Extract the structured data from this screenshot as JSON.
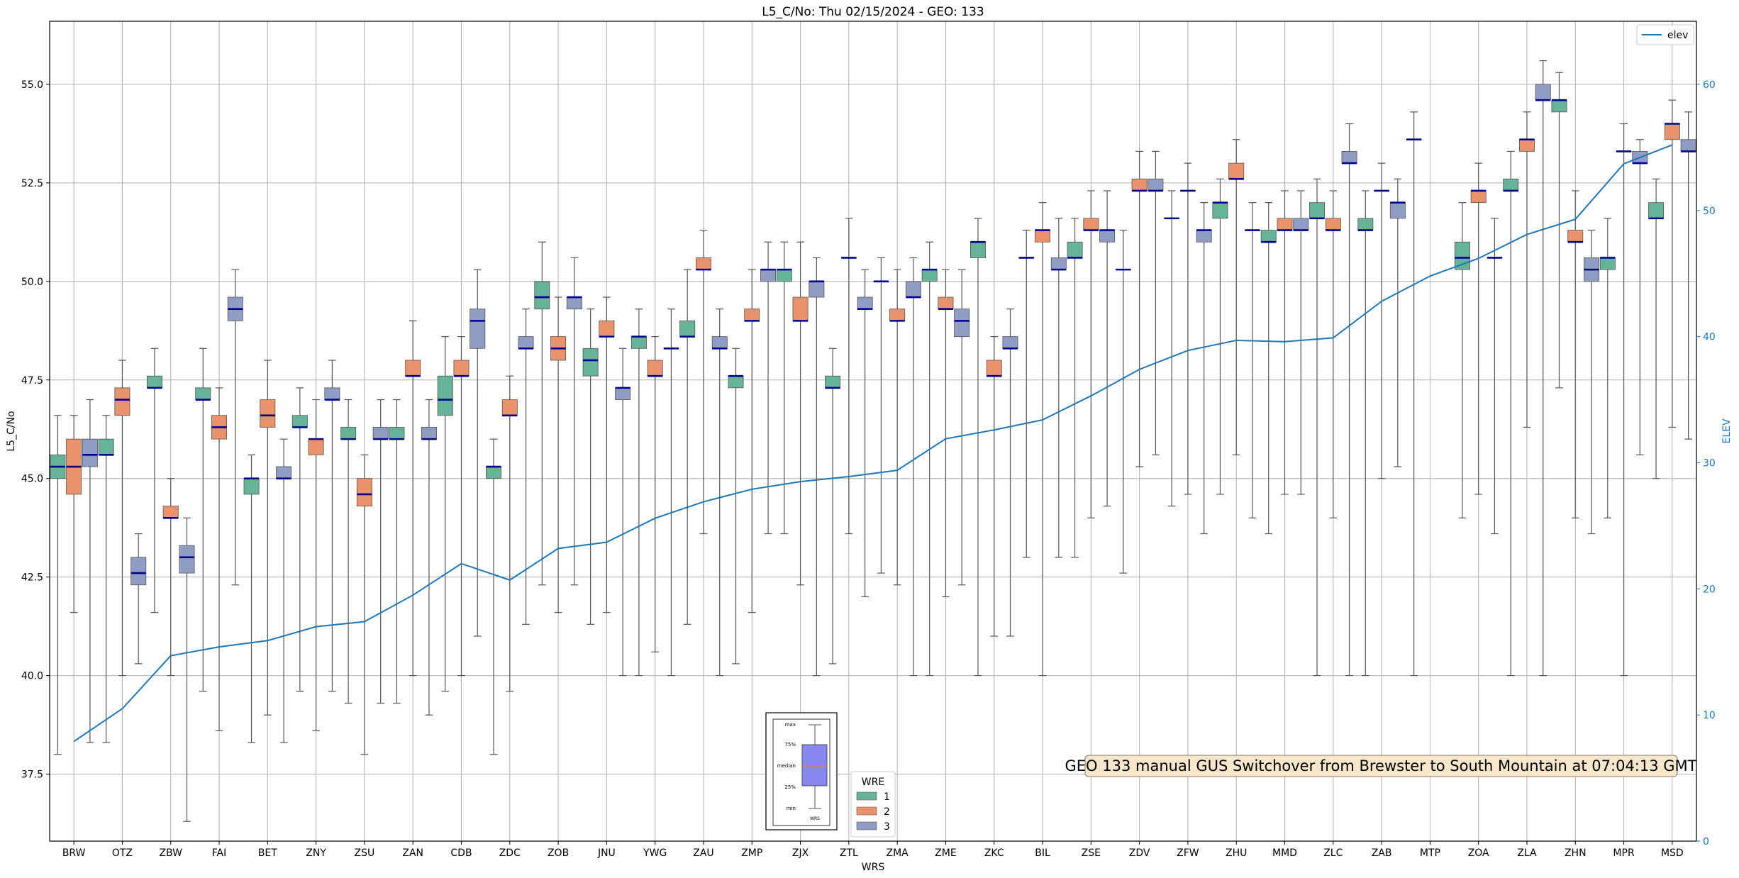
{
  "chart_data": {
    "type": "box",
    "title": "L5_C/No: Thu 02/15/2024 - GEO: 133",
    "xlabel": "WRS",
    "ylabel": "L5_C/No",
    "y2label": "ELEV",
    "ylim": [
      35.8,
      56.6
    ],
    "y2lim": [
      0,
      65
    ],
    "yticks": [
      "37.5",
      "40.0",
      "42.5",
      "45.0",
      "47.5",
      "50.0",
      "52.5",
      "55.0"
    ],
    "y2ticks": [
      "0",
      "10",
      "20",
      "30",
      "40",
      "50",
      "60"
    ],
    "grid": true,
    "categories": [
      "BRW",
      "OTZ",
      "ZBW",
      "FAI",
      "BET",
      "ZNY",
      "ZSU",
      "ZAN",
      "CDB",
      "ZDC",
      "ZOB",
      "JNU",
      "YWG",
      "ZAU",
      "ZMP",
      "ZJX",
      "ZTL",
      "ZMA",
      "ZME",
      "ZKC",
      "BIL",
      "ZSE",
      "ZDV",
      "ZFW",
      "ZHU",
      "MMD",
      "ZLC",
      "ZAB",
      "MTP",
      "ZOA",
      "ZLA",
      "ZHN",
      "MPR",
      "MSD"
    ],
    "wre_colors": {
      "1": "#66b398",
      "2": "#e8936c",
      "3": "#8f9cc4"
    },
    "legend": {
      "title": "WRE",
      "entries": [
        "1",
        "2",
        "3"
      ],
      "position": "bottom-center"
    },
    "line_legend": {
      "label": "elev",
      "position": "top-right"
    },
    "elev_line_color": "#1f77b4",
    "boxes": [
      {
        "cat": "BRW",
        "wre": "1",
        "min": 38.0,
        "q1": 45.0,
        "med": 45.3,
        "q3": 45.6,
        "max": 46.6
      },
      {
        "cat": "BRW",
        "wre": "2",
        "min": 41.6,
        "q1": 44.6,
        "med": 45.3,
        "q3": 46.0,
        "max": 46.6
      },
      {
        "cat": "BRW",
        "wre": "3",
        "min": 38.3,
        "q1": 45.3,
        "med": 45.6,
        "q3": 46.0,
        "max": 47.0
      },
      {
        "cat": "OTZ",
        "wre": "1",
        "min": 38.3,
        "q1": 45.6,
        "med": 45.6,
        "q3": 46.0,
        "max": 46.6
      },
      {
        "cat": "OTZ",
        "wre": "2",
        "min": 40.0,
        "q1": 46.6,
        "med": 47.0,
        "q3": 47.3,
        "max": 48.0
      },
      {
        "cat": "OTZ",
        "wre": "3",
        "min": 40.3,
        "q1": 42.3,
        "med": 42.6,
        "q3": 43.0,
        "max": 43.6
      },
      {
        "cat": "ZBW",
        "wre": "1",
        "min": 41.6,
        "q1": 47.3,
        "med": 47.3,
        "q3": 47.6,
        "max": 48.3
      },
      {
        "cat": "ZBW",
        "wre": "2",
        "min": 40.0,
        "q1": 44.0,
        "med": 44.0,
        "q3": 44.3,
        "max": 45.0
      },
      {
        "cat": "ZBW",
        "wre": "3",
        "min": 36.3,
        "q1": 42.6,
        "med": 43.0,
        "q3": 43.3,
        "max": 44.0
      },
      {
        "cat": "FAI",
        "wre": "1",
        "min": 39.6,
        "q1": 47.0,
        "med": 47.0,
        "q3": 47.3,
        "max": 48.3
      },
      {
        "cat": "FAI",
        "wre": "2",
        "min": 38.6,
        "q1": 46.0,
        "med": 46.3,
        "q3": 46.6,
        "max": 47.3
      },
      {
        "cat": "FAI",
        "wre": "3",
        "min": 42.3,
        "q1": 49.0,
        "med": 49.3,
        "q3": 49.6,
        "max": 50.3
      },
      {
        "cat": "BET",
        "wre": "1",
        "min": 38.3,
        "q1": 44.6,
        "med": 45.0,
        "q3": 45.0,
        "max": 45.6
      },
      {
        "cat": "BET",
        "wre": "2",
        "min": 39.0,
        "q1": 46.3,
        "med": 46.6,
        "q3": 47.0,
        "max": 48.0
      },
      {
        "cat": "BET",
        "wre": "3",
        "min": 38.3,
        "q1": 45.0,
        "med": 45.0,
        "q3": 45.3,
        "max": 46.0
      },
      {
        "cat": "ZNY",
        "wre": "1",
        "min": 39.6,
        "q1": 46.3,
        "med": 46.3,
        "q3": 46.6,
        "max": 47.3
      },
      {
        "cat": "ZNY",
        "wre": "2",
        "min": 38.6,
        "q1": 45.6,
        "med": 46.0,
        "q3": 46.0,
        "max": 47.0
      },
      {
        "cat": "ZNY",
        "wre": "3",
        "min": 39.6,
        "q1": 47.0,
        "med": 47.0,
        "q3": 47.3,
        "max": 48.0
      },
      {
        "cat": "ZSU",
        "wre": "1",
        "min": 39.3,
        "q1": 46.0,
        "med": 46.0,
        "q3": 46.3,
        "max": 47.0
      },
      {
        "cat": "ZSU",
        "wre": "2",
        "min": 38.0,
        "q1": 44.3,
        "med": 44.6,
        "q3": 45.0,
        "max": 45.6
      },
      {
        "cat": "ZSU",
        "wre": "3",
        "min": 39.3,
        "q1": 46.0,
        "med": 46.0,
        "q3": 46.3,
        "max": 47.0
      },
      {
        "cat": "ZAN",
        "wre": "1",
        "min": 39.3,
        "q1": 46.0,
        "med": 46.0,
        "q3": 46.3,
        "max": 47.0
      },
      {
        "cat": "ZAN",
        "wre": "2",
        "min": 40.0,
        "q1": 47.6,
        "med": 47.6,
        "q3": 48.0,
        "max": 49.0
      },
      {
        "cat": "ZAN",
        "wre": "3",
        "min": 39.0,
        "q1": 46.0,
        "med": 46.0,
        "q3": 46.3,
        "max": 47.0
      },
      {
        "cat": "CDB",
        "wre": "1",
        "min": 39.6,
        "q1": 46.6,
        "med": 47.0,
        "q3": 47.6,
        "max": 48.6
      },
      {
        "cat": "CDB",
        "wre": "2",
        "min": 40.0,
        "q1": 47.6,
        "med": 47.6,
        "q3": 48.0,
        "max": 48.6
      },
      {
        "cat": "CDB",
        "wre": "3",
        "min": 41.0,
        "q1": 48.3,
        "med": 49.0,
        "q3": 49.3,
        "max": 50.3
      },
      {
        "cat": "ZDC",
        "wre": "1",
        "min": 38.0,
        "q1": 45.0,
        "med": 45.3,
        "q3": 45.3,
        "max": 46.0
      },
      {
        "cat": "ZDC",
        "wre": "2",
        "min": 39.6,
        "q1": 46.6,
        "med": 46.6,
        "q3": 47.0,
        "max": 47.6
      },
      {
        "cat": "ZDC",
        "wre": "3",
        "min": 41.3,
        "q1": 48.3,
        "med": 48.3,
        "q3": 48.6,
        "max": 49.3
      },
      {
        "cat": "ZOB",
        "wre": "1",
        "min": 42.3,
        "q1": 49.3,
        "med": 49.6,
        "q3": 50.0,
        "max": 51.0
      },
      {
        "cat": "ZOB",
        "wre": "2",
        "min": 41.6,
        "q1": 48.0,
        "med": 48.3,
        "q3": 48.6,
        "max": 49.6
      },
      {
        "cat": "ZOB",
        "wre": "3",
        "min": 42.3,
        "q1": 49.3,
        "med": 49.6,
        "q3": 49.6,
        "max": 50.6
      },
      {
        "cat": "JNU",
        "wre": "1",
        "min": 41.3,
        "q1": 47.6,
        "med": 48.0,
        "q3": 48.3,
        "max": 49.3
      },
      {
        "cat": "JNU",
        "wre": "2",
        "min": 41.6,
        "q1": 48.6,
        "med": 48.6,
        "q3": 49.0,
        "max": 49.6
      },
      {
        "cat": "JNU",
        "wre": "3",
        "min": 40.0,
        "q1": 47.0,
        "med": 47.3,
        "q3": 47.3,
        "max": 48.3
      },
      {
        "cat": "YWG",
        "wre": "1",
        "min": 40.0,
        "q1": 48.3,
        "med": 48.6,
        "q3": 48.6,
        "max": 49.3
      },
      {
        "cat": "YWG",
        "wre": "2",
        "min": 40.6,
        "q1": 47.6,
        "med": 47.6,
        "q3": 48.0,
        "max": 48.6
      },
      {
        "cat": "YWG",
        "wre": "3",
        "min": 40.0,
        "q1": 48.3,
        "med": 48.3,
        "q3": 48.3,
        "max": 49.3
      },
      {
        "cat": "ZAU",
        "wre": "1",
        "min": 41.3,
        "q1": 48.6,
        "med": 48.6,
        "q3": 49.0,
        "max": 50.3
      },
      {
        "cat": "ZAU",
        "wre": "2",
        "min": 43.6,
        "q1": 50.3,
        "med": 50.3,
        "q3": 50.6,
        "max": 51.3
      },
      {
        "cat": "ZAU",
        "wre": "3",
        "min": 40.0,
        "q1": 48.3,
        "med": 48.3,
        "q3": 48.6,
        "max": 49.3
      },
      {
        "cat": "ZMP",
        "wre": "1",
        "min": 40.3,
        "q1": 47.3,
        "med": 47.6,
        "q3": 47.6,
        "max": 48.3
      },
      {
        "cat": "ZMP",
        "wre": "2",
        "min": 41.6,
        "q1": 49.0,
        "med": 49.0,
        "q3": 49.3,
        "max": 50.3
      },
      {
        "cat": "ZMP",
        "wre": "3",
        "min": 43.6,
        "q1": 50.0,
        "med": 50.3,
        "q3": 50.3,
        "max": 51.0
      },
      {
        "cat": "ZJX",
        "wre": "1",
        "min": 43.6,
        "q1": 50.0,
        "med": 50.3,
        "q3": 50.3,
        "max": 51.0
      },
      {
        "cat": "ZJX",
        "wre": "2",
        "min": 42.3,
        "q1": 49.0,
        "med": 49.0,
        "q3": 49.6,
        "max": 51.0
      },
      {
        "cat": "ZJX",
        "wre": "3",
        "min": 40.0,
        "q1": 49.6,
        "med": 50.0,
        "q3": 50.0,
        "max": 50.6
      },
      {
        "cat": "ZTL",
        "wre": "1",
        "min": 40.3,
        "q1": 47.3,
        "med": 47.3,
        "q3": 47.6,
        "max": 48.3
      },
      {
        "cat": "ZTL",
        "wre": "2",
        "min": 43.6,
        "q1": 50.6,
        "med": 50.6,
        "q3": 50.6,
        "max": 51.6
      },
      {
        "cat": "ZTL",
        "wre": "3",
        "min": 42.0,
        "q1": 49.3,
        "med": 49.3,
        "q3": 49.6,
        "max": 50.3
      },
      {
        "cat": "ZMA",
        "wre": "1",
        "min": 42.6,
        "q1": 50.0,
        "med": 50.0,
        "q3": 50.0,
        "max": 50.6
      },
      {
        "cat": "ZMA",
        "wre": "2",
        "min": 42.3,
        "q1": 49.0,
        "med": 49.0,
        "q3": 49.3,
        "max": 50.3
      },
      {
        "cat": "ZMA",
        "wre": "3",
        "min": 40.0,
        "q1": 49.6,
        "med": 49.6,
        "q3": 50.0,
        "max": 50.6
      },
      {
        "cat": "ZME",
        "wre": "1",
        "min": 40.0,
        "q1": 50.0,
        "med": 50.3,
        "q3": 50.3,
        "max": 51.0
      },
      {
        "cat": "ZME",
        "wre": "2",
        "min": 42.0,
        "q1": 49.3,
        "med": 49.3,
        "q3": 49.6,
        "max": 50.3
      },
      {
        "cat": "ZME",
        "wre": "3",
        "min": 42.3,
        "q1": 48.6,
        "med": 49.0,
        "q3": 49.3,
        "max": 50.3
      },
      {
        "cat": "ZKC",
        "wre": "1",
        "min": 40.0,
        "q1": 50.6,
        "med": 51.0,
        "q3": 51.0,
        "max": 51.6
      },
      {
        "cat": "ZKC",
        "wre": "2",
        "min": 41.0,
        "q1": 47.6,
        "med": 47.6,
        "q3": 48.0,
        "max": 48.6
      },
      {
        "cat": "ZKC",
        "wre": "3",
        "min": 41.0,
        "q1": 48.3,
        "med": 48.3,
        "q3": 48.6,
        "max": 49.3
      },
      {
        "cat": "BIL",
        "wre": "1",
        "min": 43.0,
        "q1": 50.6,
        "med": 50.6,
        "q3": 50.6,
        "max": 51.3
      },
      {
        "cat": "BIL",
        "wre": "2",
        "min": 40.0,
        "q1": 51.0,
        "med": 51.3,
        "q3": 51.3,
        "max": 52.0
      },
      {
        "cat": "BIL",
        "wre": "3",
        "min": 43.0,
        "q1": 50.3,
        "med": 50.3,
        "q3": 50.6,
        "max": 51.6
      },
      {
        "cat": "ZSE",
        "wre": "1",
        "min": 43.0,
        "q1": 50.6,
        "med": 50.6,
        "q3": 51.0,
        "max": 51.6
      },
      {
        "cat": "ZSE",
        "wre": "2",
        "min": 44.0,
        "q1": 51.3,
        "med": 51.3,
        "q3": 51.6,
        "max": 52.3
      },
      {
        "cat": "ZSE",
        "wre": "3",
        "min": 44.3,
        "q1": 51.0,
        "med": 51.3,
        "q3": 51.3,
        "max": 52.3
      },
      {
        "cat": "ZDV",
        "wre": "1",
        "min": 42.6,
        "q1": 50.3,
        "med": 50.3,
        "q3": 50.3,
        "max": 51.3
      },
      {
        "cat": "ZDV",
        "wre": "2",
        "min": 45.3,
        "q1": 52.3,
        "med": 52.3,
        "q3": 52.6,
        "max": 53.3
      },
      {
        "cat": "ZDV",
        "wre": "3",
        "min": 45.6,
        "q1": 52.3,
        "med": 52.3,
        "q3": 52.6,
        "max": 53.3
      },
      {
        "cat": "ZFW",
        "wre": "1",
        "min": 44.3,
        "q1": 51.6,
        "med": 51.6,
        "q3": 51.6,
        "max": 52.3
      },
      {
        "cat": "ZFW",
        "wre": "2",
        "min": 44.6,
        "q1": 52.3,
        "med": 52.3,
        "q3": 52.3,
        "max": 53.0
      },
      {
        "cat": "ZFW",
        "wre": "3",
        "min": 43.6,
        "q1": 51.0,
        "med": 51.3,
        "q3": 51.3,
        "max": 52.0
      },
      {
        "cat": "ZHU",
        "wre": "1",
        "min": 44.6,
        "q1": 51.6,
        "med": 52.0,
        "q3": 52.0,
        "max": 52.6
      },
      {
        "cat": "ZHU",
        "wre": "2",
        "min": 45.6,
        "q1": 52.6,
        "med": 52.6,
        "q3": 53.0,
        "max": 53.6
      },
      {
        "cat": "ZHU",
        "wre": "3",
        "min": 44.0,
        "q1": 51.3,
        "med": 51.3,
        "q3": 51.3,
        "max": 52.0
      },
      {
        "cat": "MMD",
        "wre": "1",
        "min": 43.6,
        "q1": 51.0,
        "med": 51.0,
        "q3": 51.3,
        "max": 52.0
      },
      {
        "cat": "MMD",
        "wre": "2",
        "min": 44.6,
        "q1": 51.3,
        "med": 51.3,
        "q3": 51.6,
        "max": 52.3
      },
      {
        "cat": "MMD",
        "wre": "3",
        "min": 44.6,
        "q1": 51.3,
        "med": 51.3,
        "q3": 51.6,
        "max": 52.3
      },
      {
        "cat": "ZLC",
        "wre": "1",
        "min": 40.0,
        "q1": 51.6,
        "med": 51.6,
        "q3": 52.0,
        "max": 52.6
      },
      {
        "cat": "ZLC",
        "wre": "2",
        "min": 44.0,
        "q1": 51.3,
        "med": 51.3,
        "q3": 51.6,
        "max": 52.3
      },
      {
        "cat": "ZLC",
        "wre": "3",
        "min": 40.0,
        "q1": 53.0,
        "med": 53.0,
        "q3": 53.3,
        "max": 54.0
      },
      {
        "cat": "ZAB",
        "wre": "1",
        "min": 40.0,
        "q1": 51.3,
        "med": 51.3,
        "q3": 51.6,
        "max": 52.3
      },
      {
        "cat": "ZAB",
        "wre": "2",
        "min": 45.0,
        "q1": 52.3,
        "med": 52.3,
        "q3": 52.3,
        "max": 53.0
      },
      {
        "cat": "ZAB",
        "wre": "3",
        "min": 45.3,
        "q1": 51.6,
        "med": 52.0,
        "q3": 52.0,
        "max": 52.6
      },
      {
        "cat": "MTP",
        "wre": "1",
        "min": 40.0,
        "q1": 53.6,
        "med": 53.6,
        "q3": 53.6,
        "max": 54.3
      },
      {
        "cat": "ZOA",
        "wre": "1",
        "min": 44.0,
        "q1": 50.3,
        "med": 50.6,
        "q3": 51.0,
        "max": 52.0
      },
      {
        "cat": "ZOA",
        "wre": "2",
        "min": 44.6,
        "q1": 52.0,
        "med": 52.3,
        "q3": 52.3,
        "max": 53.0
      },
      {
        "cat": "ZOA",
        "wre": "3",
        "min": 43.6,
        "q1": 50.6,
        "med": 50.6,
        "q3": 50.6,
        "max": 51.6
      },
      {
        "cat": "ZLA",
        "wre": "1",
        "min": 40.0,
        "q1": 52.3,
        "med": 52.3,
        "q3": 52.6,
        "max": 53.3
      },
      {
        "cat": "ZLA",
        "wre": "2",
        "min": 46.3,
        "q1": 53.3,
        "med": 53.6,
        "q3": 53.6,
        "max": 54.3
      },
      {
        "cat": "ZLA",
        "wre": "3",
        "min": 40.0,
        "q1": 54.6,
        "med": 54.6,
        "q3": 55.0,
        "max": 55.6
      },
      {
        "cat": "ZHN",
        "wre": "1",
        "min": 47.3,
        "q1": 54.3,
        "med": 54.6,
        "q3": 54.6,
        "max": 55.3
      },
      {
        "cat": "ZHN",
        "wre": "2",
        "min": 44.0,
        "q1": 51.0,
        "med": 51.0,
        "q3": 51.3,
        "max": 52.3
      },
      {
        "cat": "ZHN",
        "wre": "3",
        "min": 43.6,
        "q1": 50.0,
        "med": 50.3,
        "q3": 50.6,
        "max": 51.3
      },
      {
        "cat": "MPR",
        "wre": "1",
        "min": 44.0,
        "q1": 50.3,
        "med": 50.6,
        "q3": 50.6,
        "max": 51.6
      },
      {
        "cat": "MPR",
        "wre": "2",
        "min": 40.0,
        "q1": 53.3,
        "med": 53.3,
        "q3": 53.3,
        "max": 54.0
      },
      {
        "cat": "MPR",
        "wre": "3",
        "min": 45.6,
        "q1": 53.0,
        "med": 53.0,
        "q3": 53.3,
        "max": 53.6
      },
      {
        "cat": "MSD",
        "wre": "1",
        "min": 45.0,
        "q1": 51.6,
        "med": 51.6,
        "q3": 52.0,
        "max": 52.6
      },
      {
        "cat": "MSD",
        "wre": "2",
        "min": 46.3,
        "q1": 53.6,
        "med": 54.0,
        "q3": 54.0,
        "max": 54.6
      },
      {
        "cat": "MSD",
        "wre": "3",
        "min": 46.0,
        "q1": 53.3,
        "med": 53.3,
        "q3": 53.6,
        "max": 54.3
      }
    ],
    "elev": [
      7.9,
      10.5,
      14.7,
      15.4,
      15.9,
      17.0,
      17.4,
      19.5,
      22.0,
      20.7,
      23.2,
      23.7,
      25.6,
      26.9,
      27.9,
      28.5,
      28.9,
      29.4,
      31.9,
      32.6,
      33.4,
      35.3,
      37.4,
      38.9,
      39.7,
      39.6,
      39.9,
      42.8,
      44.8,
      46.2,
      48.1,
      49.3,
      53.7,
      55.2
    ],
    "elev_per_category_note": "",
    "inset_legend": {
      "labels": [
        "max",
        "75%",
        "median",
        "25%",
        "min"
      ],
      "box_label": "WRS"
    },
    "annotation": "GEO 133 manual GUS Switchover from Brewster to South Mountain at 07:04:13 GMT"
  }
}
